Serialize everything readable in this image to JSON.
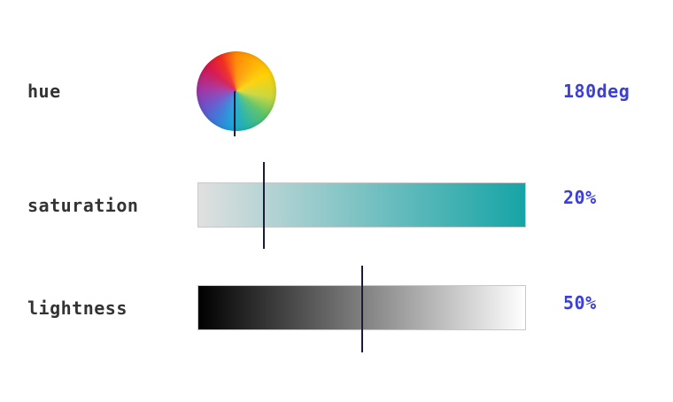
{
  "rows": {
    "hue": {
      "label": "hue",
      "value_text": "180deg",
      "value_deg": 180
    },
    "saturation": {
      "label": "saturation",
      "value_text": "20%",
      "value_fraction": 0.2
    },
    "lightness": {
      "label": "lightness",
      "value_text": "50%",
      "value_fraction": 0.5
    }
  },
  "colors": {
    "value_text": "#3b3fd8",
    "label_text": "#333333",
    "marker": "#1c1c3a",
    "saturation_start": "#e0e0e0",
    "saturation_end": "#16a4a6",
    "lightness_start": "#000000",
    "lightness_end": "#ffffff"
  }
}
